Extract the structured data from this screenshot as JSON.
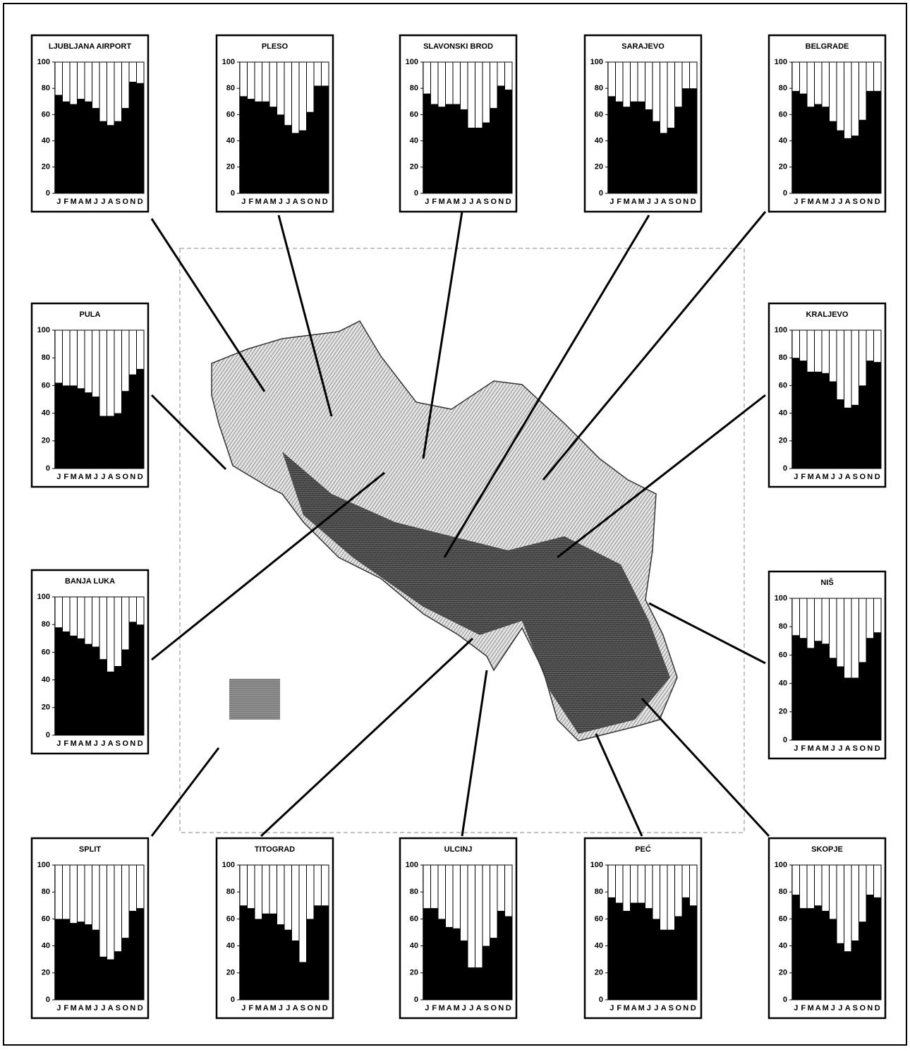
{
  "chart_data": [
    {
      "type": "bar",
      "title": "LJUBLJANA AIRPORT",
      "categories": [
        "J",
        "F",
        "M",
        "A",
        "M",
        "J",
        "J",
        "A",
        "S",
        "O",
        "N",
        "D"
      ],
      "values": [
        75,
        70,
        68,
        72,
        70,
        65,
        55,
        52,
        55,
        65,
        85,
        84
      ],
      "color": "#000000",
      "ylim": [
        0,
        100
      ],
      "yticks": [
        0,
        20,
        40,
        60,
        80,
        100
      ]
    },
    {
      "type": "bar",
      "title": "PLESO",
      "categories": [
        "J",
        "F",
        "M",
        "A",
        "M",
        "J",
        "J",
        "A",
        "S",
        "O",
        "N",
        "D"
      ],
      "values": [
        74,
        72,
        70,
        70,
        66,
        60,
        52,
        46,
        48,
        62,
        82,
        82
      ],
      "color": "#000000",
      "ylim": [
        0,
        100
      ],
      "yticks": [
        0,
        20,
        40,
        60,
        80,
        100
      ]
    },
    {
      "type": "bar",
      "title": "SLAVONSKI BROD",
      "categories": [
        "J",
        "F",
        "M",
        "A",
        "M",
        "J",
        "J",
        "A",
        "S",
        "O",
        "N",
        "D"
      ],
      "values": [
        76,
        68,
        66,
        68,
        68,
        64,
        50,
        50,
        54,
        65,
        82,
        79
      ],
      "color": "#000000",
      "ylim": [
        0,
        100
      ],
      "yticks": [
        0,
        20,
        40,
        60,
        80,
        100
      ]
    },
    {
      "type": "bar",
      "title": "SARAJEVO",
      "categories": [
        "J",
        "F",
        "M",
        "A",
        "M",
        "J",
        "J",
        "A",
        "S",
        "O",
        "N",
        "D"
      ],
      "values": [
        74,
        70,
        66,
        70,
        70,
        64,
        55,
        46,
        50,
        66,
        80,
        80
      ],
      "color": "#000000",
      "ylim": [
        0,
        100
      ],
      "yticks": [
        0,
        20,
        40,
        60,
        80,
        100
      ]
    },
    {
      "type": "bar",
      "title": "BELGRADE",
      "categories": [
        "J",
        "F",
        "M",
        "A",
        "M",
        "J",
        "J",
        "A",
        "S",
        "O",
        "N",
        "D"
      ],
      "values": [
        78,
        76,
        66,
        68,
        66,
        55,
        48,
        42,
        44,
        56,
        78,
        78
      ],
      "color": "#000000",
      "ylim": [
        0,
        100
      ],
      "yticks": [
        0,
        20,
        40,
        60,
        80,
        100
      ]
    },
    {
      "type": "bar",
      "title": "PULA",
      "categories": [
        "J",
        "F",
        "M",
        "A",
        "M",
        "J",
        "J",
        "A",
        "S",
        "O",
        "N",
        "D"
      ],
      "values": [
        62,
        60,
        60,
        58,
        55,
        52,
        38,
        38,
        40,
        56,
        68,
        72
      ],
      "color": "#000000",
      "ylim": [
        0,
        100
      ],
      "yticks": [
        0,
        20,
        40,
        60,
        80,
        100
      ]
    },
    {
      "type": "bar",
      "title": "KRALJEVO",
      "categories": [
        "J",
        "F",
        "M",
        "A",
        "M",
        "J",
        "J",
        "A",
        "S",
        "O",
        "N",
        "D"
      ],
      "values": [
        80,
        78,
        70,
        70,
        69,
        63,
        50,
        44,
        46,
        60,
        78,
        77
      ],
      "color": "#000000",
      "ylim": [
        0,
        100
      ],
      "yticks": [
        0,
        20,
        40,
        60,
        80,
        100
      ]
    },
    {
      "type": "bar",
      "title": "BANJA LUKA",
      "categories": [
        "J",
        "F",
        "M",
        "A",
        "M",
        "J",
        "J",
        "A",
        "S",
        "O",
        "N",
        "D"
      ],
      "values": [
        78,
        75,
        72,
        70,
        66,
        64,
        55,
        46,
        50,
        62,
        82,
        80
      ],
      "color": "#000000",
      "ylim": [
        0,
        100
      ],
      "yticks": [
        0,
        20,
        40,
        60,
        80,
        100
      ]
    },
    {
      "type": "bar",
      "title": "NIŠ",
      "categories": [
        "J",
        "F",
        "M",
        "A",
        "M",
        "J",
        "J",
        "A",
        "S",
        "O",
        "N",
        "D"
      ],
      "values": [
        74,
        72,
        65,
        70,
        68,
        58,
        52,
        44,
        44,
        55,
        72,
        76
      ],
      "color": "#000000",
      "ylim": [
        0,
        100
      ],
      "yticks": [
        0,
        20,
        40,
        60,
        80,
        100
      ]
    },
    {
      "type": "bar",
      "title": "SPLIT",
      "categories": [
        "J",
        "F",
        "M",
        "A",
        "M",
        "J",
        "J",
        "A",
        "S",
        "O",
        "N",
        "D"
      ],
      "values": [
        60,
        60,
        57,
        58,
        56,
        52,
        32,
        30,
        36,
        46,
        66,
        68
      ],
      "color": "#000000",
      "ylim": [
        0,
        100
      ],
      "yticks": [
        0,
        20,
        40,
        60,
        80,
        100
      ]
    },
    {
      "type": "bar",
      "title": "TITOGRAD",
      "categories": [
        "J",
        "F",
        "M",
        "A",
        "M",
        "J",
        "J",
        "A",
        "S",
        "O",
        "N",
        "D"
      ],
      "values": [
        70,
        68,
        60,
        64,
        64,
        56,
        52,
        44,
        28,
        60,
        70,
        70
      ],
      "color": "#000000",
      "ylim": [
        0,
        100
      ],
      "yticks": [
        0,
        20,
        40,
        60,
        80,
        100
      ]
    },
    {
      "type": "bar",
      "title": "ULCINJ",
      "categories": [
        "J",
        "F",
        "M",
        "A",
        "M",
        "J",
        "J",
        "A",
        "S",
        "O",
        "N",
        "D"
      ],
      "values": [
        68,
        68,
        60,
        54,
        53,
        44,
        24,
        24,
        40,
        46,
        66,
        62
      ],
      "color": "#000000",
      "ylim": [
        0,
        100
      ],
      "yticks": [
        0,
        20,
        40,
        60,
        80,
        100
      ]
    },
    {
      "type": "bar",
      "title": "PEĆ",
      "categories": [
        "J",
        "F",
        "M",
        "A",
        "M",
        "J",
        "J",
        "A",
        "S",
        "O",
        "N",
        "D"
      ],
      "values": [
        76,
        72,
        66,
        72,
        72,
        68,
        60,
        52,
        52,
        62,
        76,
        70
      ],
      "color": "#000000",
      "ylim": [
        0,
        100
      ],
      "yticks": [
        0,
        20,
        40,
        60,
        80,
        100
      ]
    },
    {
      "type": "bar",
      "title": "SKOPJE",
      "categories": [
        "J",
        "F",
        "M",
        "A",
        "M",
        "J",
        "J",
        "A",
        "S",
        "O",
        "N",
        "D"
      ],
      "values": [
        78,
        68,
        68,
        70,
        66,
        60,
        42,
        36,
        44,
        58,
        78,
        76
      ],
      "color": "#000000",
      "ylim": [
        0,
        100
      ],
      "yticks": [
        0,
        20,
        40,
        60,
        80,
        100
      ]
    }
  ]
}
